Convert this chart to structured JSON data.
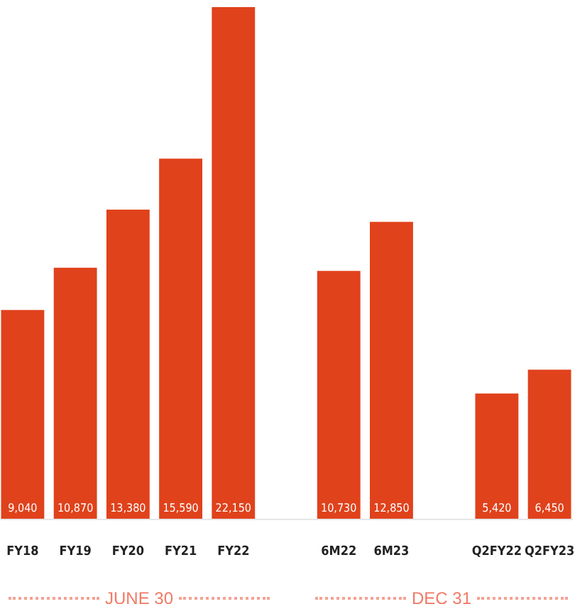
{
  "chart_data": {
    "type": "bar",
    "categories": [
      "FY18",
      "FY19",
      "FY20",
      "FY21",
      "FY22",
      null,
      "6M22",
      "6M23",
      null,
      "Q2FY22",
      "Q2FY23"
    ],
    "values": [
      9040,
      10870,
      13380,
      15590,
      22150,
      null,
      10730,
      12850,
      null,
      5420,
      6450
    ],
    "color": "#e0421c",
    "data_labels": true,
    "value_labels": [
      "9,040",
      "10,870",
      "13,380",
      "15,590",
      "22,150",
      null,
      "10,730",
      "12,850",
      null,
      "5,420",
      "6,450"
    ],
    "tick_labels": "x",
    "annotations": [
      "JUNE 30",
      "DEC 31"
    ]
  }
}
